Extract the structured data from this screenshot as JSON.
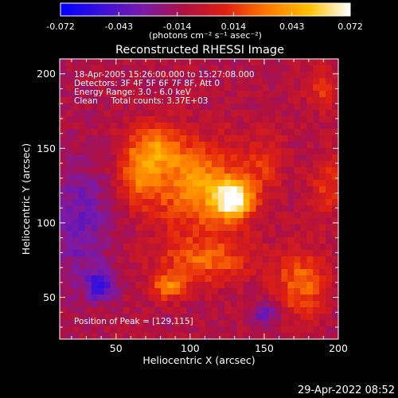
{
  "chart_data": {
    "type": "heatmap",
    "title": "Reconstructed RHESSI Image",
    "xlabel": "Heliocentric X (arcsec)",
    "ylabel": "Heliocentric Y (arcsec)",
    "xlim": [
      12,
      200
    ],
    "ylim": [
      22,
      210
    ],
    "x_ticks": [
      50,
      100,
      150,
      200
    ],
    "y_ticks": [
      50,
      100,
      150,
      200
    ],
    "colorbar": {
      "min": -0.072,
      "max": 0.072,
      "ticks": [
        "-0.072",
        "-0.043",
        "-0.014",
        "0.014",
        "0.043",
        "0.072"
      ],
      "unit_label": "(photons cm⁻² s⁻¹ asec⁻²)",
      "colors": [
        "#0000ff",
        "#3a10d8",
        "#7a1aa8",
        "#b01040",
        "#e02010",
        "#ff7a00",
        "#ffc000",
        "#ffffff"
      ]
    },
    "annotations": [
      "18-Apr-2005 15:26:00.000 to 15:27:08.000",
      "Detectors: 3F 4F 5F 6F 7F 8F, Att 0",
      "Energy Range: 3.0 - 6.0 keV",
      "Clean     Total counts: 3.37E+03"
    ],
    "peak_label": "Position of Peak = [129,115]",
    "peak": [
      129,
      115
    ],
    "sources": [
      {
        "x": 129,
        "y": 115,
        "value": 0.072,
        "sx": 9,
        "sy": 9
      },
      {
        "x": 105,
        "y": 125,
        "value": 0.048,
        "sx": 22,
        "sy": 20
      },
      {
        "x": 75,
        "y": 150,
        "value": 0.04,
        "sx": 14,
        "sy": 11
      },
      {
        "x": 65,
        "y": 128,
        "value": 0.03,
        "sx": 9,
        "sy": 12
      },
      {
        "x": 110,
        "y": 75,
        "value": 0.034,
        "sx": 22,
        "sy": 11
      },
      {
        "x": 85,
        "y": 57,
        "value": 0.04,
        "sx": 8,
        "sy": 6
      },
      {
        "x": 175,
        "y": 60,
        "value": 0.036,
        "sx": 12,
        "sy": 16
      },
      {
        "x": 190,
        "y": 190,
        "value": 0.024,
        "sx": 8,
        "sy": 10
      },
      {
        "x": 193,
        "y": 125,
        "value": 0.024,
        "sx": 8,
        "sy": 14
      },
      {
        "x": 150,
        "y": 140,
        "value": 0.018,
        "sx": 10,
        "sy": 14
      },
      {
        "x": 40,
        "y": 58,
        "value": -0.042,
        "sx": 7,
        "sy": 7
      },
      {
        "x": 150,
        "y": 38,
        "value": -0.03,
        "sx": 6,
        "sy": 5
      },
      {
        "x": 25,
        "y": 100,
        "value": -0.025,
        "sx": 14,
        "sy": 30
      }
    ],
    "background": -0.01,
    "grid": false
  },
  "footer": {
    "date": "29-Apr-2022 08:52"
  }
}
